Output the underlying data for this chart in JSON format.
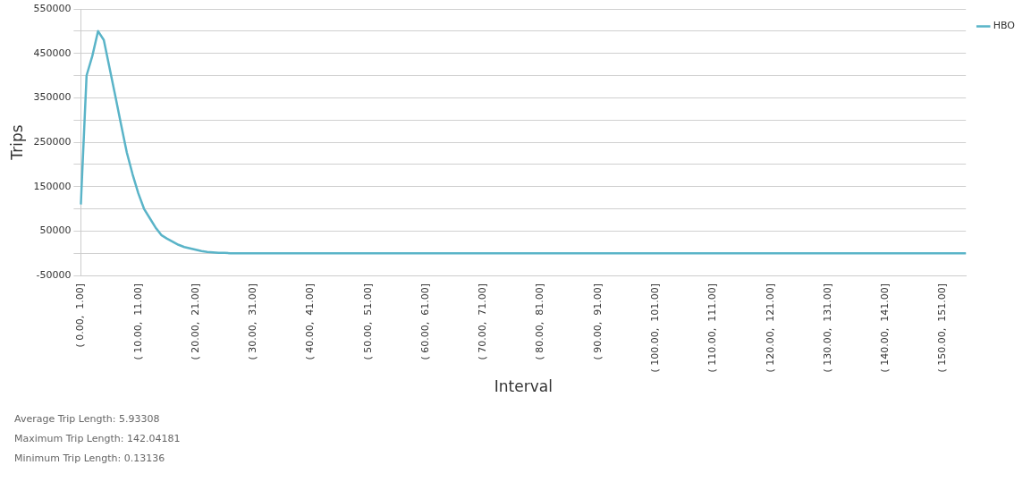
{
  "chart_data": {
    "type": "line",
    "xlabel": "Interval",
    "ylabel": "Trips",
    "categories": [
      "( 0.00,  1.00]",
      null,
      null,
      null,
      null,
      null,
      null,
      null,
      null,
      null,
      "( 10.00,  11.00]",
      null,
      null,
      null,
      null,
      null,
      null,
      null,
      null,
      null,
      "( 20.00,  21.00]",
      null,
      null,
      null,
      null,
      null,
      null,
      null,
      null,
      null,
      "( 30.00,  31.00]",
      null,
      null,
      null,
      null,
      null,
      null,
      null,
      null,
      null,
      "( 40.00,  41.00]",
      null,
      null,
      null,
      null,
      null,
      null,
      null,
      null,
      null,
      "( 50.00,  51.00]",
      null,
      null,
      null,
      null,
      null,
      null,
      null,
      null,
      null,
      "( 60.00,  61.00]",
      null,
      null,
      null,
      null,
      null,
      null,
      null,
      null,
      null,
      "( 70.00,  71.00]",
      null,
      null,
      null,
      null,
      null,
      null,
      null,
      null,
      null,
      "( 80.00,  81.00]",
      null,
      null,
      null,
      null,
      null,
      null,
      null,
      null,
      null,
      "( 90.00,  91.00]",
      null,
      null,
      null,
      null,
      null,
      null,
      null,
      null,
      null,
      "( 100.00,  101.00]",
      null,
      null,
      null,
      null,
      null,
      null,
      null,
      null,
      null,
      "( 110.00,  111.00]",
      null,
      null,
      null,
      null,
      null,
      null,
      null,
      null,
      null,
      "( 120.00,  121.00]",
      null,
      null,
      null,
      null,
      null,
      null,
      null,
      null,
      null,
      "( 130.00,  131.00]",
      null,
      null,
      null,
      null,
      null,
      null,
      null,
      null,
      null,
      "( 140.00,  141.00]",
      null,
      null,
      null,
      null,
      null,
      null,
      null,
      null,
      null,
      "( 150.00,  151.00]",
      null,
      null,
      null,
      null
    ],
    "series": [
      {
        "name": "HBO",
        "color": "#5ab4c8",
        "values": [
          110000,
          400000,
          444000,
          500000,
          480000,
          417000,
          354000,
          290000,
          227000,
          178000,
          135000,
          100000,
          79000,
          58000,
          41000,
          33000,
          26000,
          19000,
          14000,
          11000,
          8000,
          5000,
          3000,
          2000,
          1000,
          1000,
          0,
          0,
          0,
          0,
          0,
          0,
          0,
          0,
          0,
          0,
          0,
          0,
          0,
          0,
          0,
          0,
          0,
          0,
          0,
          0,
          0,
          0,
          0,
          0,
          0,
          0,
          0,
          0,
          0,
          0,
          0,
          0,
          0,
          0,
          0,
          0,
          0,
          0,
          0,
          0,
          0,
          0,
          0,
          0,
          0,
          0,
          0,
          0,
          0,
          0,
          0,
          0,
          0,
          0,
          0,
          0,
          0,
          0,
          0,
          0,
          0,
          0,
          0,
          0,
          0,
          0,
          0,
          0,
          0,
          0,
          0,
          0,
          0,
          0,
          0,
          0,
          0,
          0,
          0,
          0,
          0,
          0,
          0,
          0,
          0,
          0,
          0,
          0,
          0,
          0,
          0,
          0,
          0,
          0,
          0,
          0,
          0,
          0,
          0,
          0,
          0,
          0,
          0,
          0,
          0,
          0,
          0,
          0,
          0,
          0,
          0,
          0,
          0,
          0,
          0,
          0,
          0,
          0,
          0,
          0,
          0,
          0,
          0,
          0,
          0,
          0,
          0,
          0,
          0
        ]
      }
    ],
    "ylim": [
      -50000,
      550000
    ],
    "yticks": [
      -50000,
      {
        "value": 0,
        "label": null
      },
      50000,
      {
        "value": 100000,
        "label": null
      },
      150000,
      {
        "value": 200000,
        "label": null
      },
      250000,
      {
        "value": 300000,
        "label": null
      },
      350000,
      {
        "value": 400000,
        "label": null
      },
      450000,
      {
        "value": 500000,
        "label": null
      },
      550000
    ],
    "grid": "y",
    "legend": "top right",
    "marker": "none",
    "line_style": "solid",
    "annotations": [
      "Average Trip Length: 5.93308",
      "Maximum Trip Length: 142.04181",
      "Minimum Trip Length: 0.13136"
    ]
  }
}
